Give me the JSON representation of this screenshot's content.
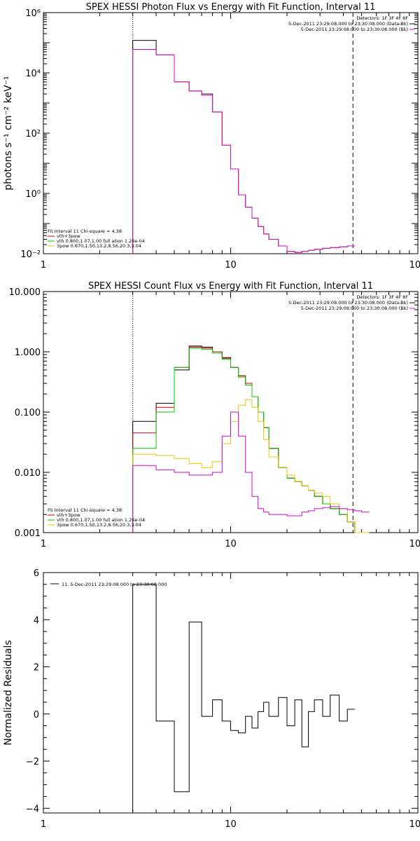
{
  "chart_data": [
    {
      "type": "line",
      "title": "SPEX HESSI Photon Flux vs Energy with Fit Function, Interval 11",
      "xlabel": "",
      "ylabel": "photons s⁻¹ cm⁻² keV⁻¹",
      "xscale": "log",
      "yscale": "log",
      "xlim": [
        1,
        100
      ],
      "ylim": [
        0.01,
        1000000
      ],
      "xticks": [
        "1",
        "10",
        "100"
      ],
      "yticks": [
        "10⁻²",
        "10⁰",
        "10²",
        "10⁴",
        "10⁶"
      ],
      "vlines": {
        "dotted": 3,
        "dashed": 45
      },
      "legend_top": {
        "line1": "Detectors: 1F 3F 4F 8F",
        "line2": "5-Dec-2011 23:29:08.000 to 23:30:08.000 (Data-Bk)",
        "line3": "5-Dec-2011 23:29:08.000 to 23:30:08.000 (Bk)"
      },
      "legend_fit": {
        "header": "Fit Interval 11    Chi-square = 4.38",
        "items": [
          "vth+3pow",
          "vth 0.800,1.07,1.00  full ation 1.26e-04",
          "3pow 0.670,1.50,13.2,8.56,20.3,3.04"
        ]
      },
      "edges": [
        3,
        4,
        5,
        6,
        7,
        8,
        9,
        10,
        11,
        12,
        13,
        14,
        15,
        16,
        18,
        20,
        22,
        24,
        26,
        28,
        31,
        34,
        38,
        42,
        46
      ],
      "series": [
        {
          "color": "#000000",
          "values": [
            120000,
            40000,
            5000,
            2500,
            2000,
            500,
            40,
            6.5,
            0.9,
            0.35,
            0.15,
            0.08,
            0.045,
            0.03,
            0.018,
            0.012,
            0.011,
            0.012,
            0.013,
            0.014,
            0.015,
            0.016,
            0.017,
            0.018
          ]
        },
        {
          "color": "#cc0000",
          "values": [
            60000,
            40000,
            5000,
            2500,
            1800,
            500,
            40,
            6.5,
            0.9,
            0.35,
            0.15,
            0.08,
            0.045,
            0.03,
            0.018,
            0.012,
            0.011,
            0.012,
            0.013,
            0.014,
            0.015,
            0.016,
            0.017,
            0.018
          ]
        },
        {
          "color": "#00cc00",
          "values": [
            60000,
            40000,
            5000,
            2500,
            1800,
            500,
            40,
            6.5,
            0.9,
            0.35,
            0.15,
            0.08,
            0.045,
            0.03,
            0.018,
            0.012,
            0.011,
            0.012,
            0.013,
            0.014,
            0.015,
            0.016,
            0.017,
            0.018
          ]
        },
        {
          "color": "#e6c800",
          "values": [
            60000,
            40000,
            5000,
            2500,
            1800,
            500,
            40,
            6.5,
            0.9,
            0.35,
            0.15,
            0.08,
            0.045,
            0.03,
            0.018,
            0.012,
            0.011,
            0.012,
            0.013,
            0.014,
            0.015,
            0.016,
            0.017,
            0.018
          ]
        },
        {
          "color": "#dd00dd",
          "values": [
            60000,
            40000,
            5000,
            2500,
            1800,
            500,
            40,
            6.5,
            0.9,
            0.35,
            0.15,
            0.08,
            0.045,
            0.03,
            0.018,
            0.012,
            0.011,
            0.012,
            0.013,
            0.014,
            0.015,
            0.016,
            0.017,
            0.018
          ]
        }
      ]
    },
    {
      "type": "line",
      "title": "SPEX HESSI Count Flux vs Energy with Fit Function, Interval 11",
      "xlabel": "",
      "ylabel": "",
      "xscale": "log",
      "yscale": "log",
      "xlim": [
        1,
        100
      ],
      "ylim": [
        0.001,
        10
      ],
      "xticks": [
        "1",
        "10",
        "100"
      ],
      "yticks": [
        "0.001",
        "0.010",
        "0.100",
        "1.000",
        "10.000"
      ],
      "vlines": {
        "dotted": 3,
        "dashed": 45
      },
      "legend_top": {
        "line1": "Detectors: 1F 3F 4F 8F",
        "line2": "5-Dec-2011 23:29:08.000 to 23:30:08.000 (Data-Bk)",
        "line3": "5-Dec-2011 23:29:08.000 to 23:30:08.000 (Bk)"
      },
      "legend_fit": {
        "header": "Fit Interval 11    Chi-square = 4.38",
        "items": [
          "vth+3pow",
          "vth 0.800,1.07,1.00  full ation 1.26e-04",
          "3pow 0.670,1.50,13.2,8.56,20.3,3.04"
        ]
      },
      "edges": [
        3,
        4,
        5,
        6,
        7,
        8,
        9,
        10,
        11,
        12,
        13,
        14,
        15,
        16,
        18,
        20,
        22,
        24,
        26,
        28,
        31,
        34,
        38,
        42,
        46,
        50,
        55
      ],
      "series": [
        {
          "color": "#000000",
          "values": [
            0.07,
            0.14,
            0.5,
            1.25,
            1.2,
            1.0,
            0.8,
            0.55,
            0.4,
            0.28,
            0.18,
            0.1,
            0.055,
            0.025,
            0.012,
            0.008,
            0.007,
            0.006,
            0.005,
            0.004,
            0.003,
            0.0025,
            0.002,
            0.0015,
            0.001,
            0.0008
          ]
        },
        {
          "color": "#cc0000",
          "values": [
            0.045,
            0.12,
            0.55,
            1.2,
            1.15,
            1.0,
            0.78,
            0.55,
            0.4,
            0.3,
            0.18,
            0.1,
            0.055,
            0.025,
            0.012,
            0.008,
            0.007,
            0.006,
            0.005,
            0.004,
            0.003,
            0.0025,
            0.002,
            0.0015,
            0.001,
            0.0008
          ]
        },
        {
          "color": "#00cc00",
          "values": [
            0.025,
            0.1,
            0.55,
            1.15,
            1.1,
            0.95,
            0.75,
            0.55,
            0.38,
            0.28,
            0.18,
            0.1,
            0.055,
            0.025,
            0.012,
            0.008,
            0.007,
            0.006,
            0.005,
            0.004,
            0.003,
            0.0025,
            0.002,
            0.0015,
            0.001,
            0.0008
          ]
        },
        {
          "color": "#e6c800",
          "values": [
            0.02,
            0.019,
            0.017,
            0.014,
            0.012,
            0.015,
            0.03,
            0.07,
            0.13,
            0.16,
            0.12,
            0.07,
            0.035,
            0.018,
            0.012,
            0.009,
            0.007,
            0.006,
            0.005,
            0.0045,
            0.004,
            0.003,
            0.0025,
            0.0015,
            0.001,
            0.0008
          ]
        },
        {
          "color": "#dd00dd",
          "values": [
            0.013,
            0.011,
            0.01,
            0.009,
            0.009,
            0.01,
            0.04,
            0.1,
            0.04,
            0.01,
            0.004,
            0.0025,
            0.0022,
            0.002,
            0.002,
            0.0019,
            0.0019,
            0.0022,
            0.0023,
            0.0025,
            0.0026,
            0.0027,
            0.0025,
            0.0024,
            0.0023,
            0.0022
          ]
        }
      ]
    },
    {
      "type": "line",
      "title": "",
      "xlabel": "",
      "ylabel": "Normalized Residuals",
      "xscale": "log",
      "yscale": "linear",
      "xlim": [
        1,
        100
      ],
      "ylim": [
        -4.2,
        6
      ],
      "xticks": [
        "1",
        "10",
        "100"
      ],
      "yticks": [
        "−4",
        "−2",
        "0",
        "2",
        "4",
        "6"
      ],
      "legend": "11.  5-Dec-2011 23:29:08.000 to 23:30:08.000",
      "edges": [
        3,
        4,
        5,
        6,
        7,
        8,
        9,
        10,
        11,
        12,
        13,
        14,
        15,
        16,
        18,
        20,
        22,
        24,
        26,
        28,
        31,
        34,
        38,
        42,
        46
      ],
      "values": [
        5.5,
        -0.3,
        -3.3,
        3.9,
        -0.1,
        0.6,
        -0.3,
        -0.7,
        -0.8,
        -0.1,
        -0.6,
        0.1,
        0.5,
        -0.1,
        0.7,
        -0.5,
        0.6,
        -1.4,
        0.1,
        0.6,
        -0.1,
        0.8,
        -0.3,
        0.2,
        0.2
      ]
    }
  ]
}
